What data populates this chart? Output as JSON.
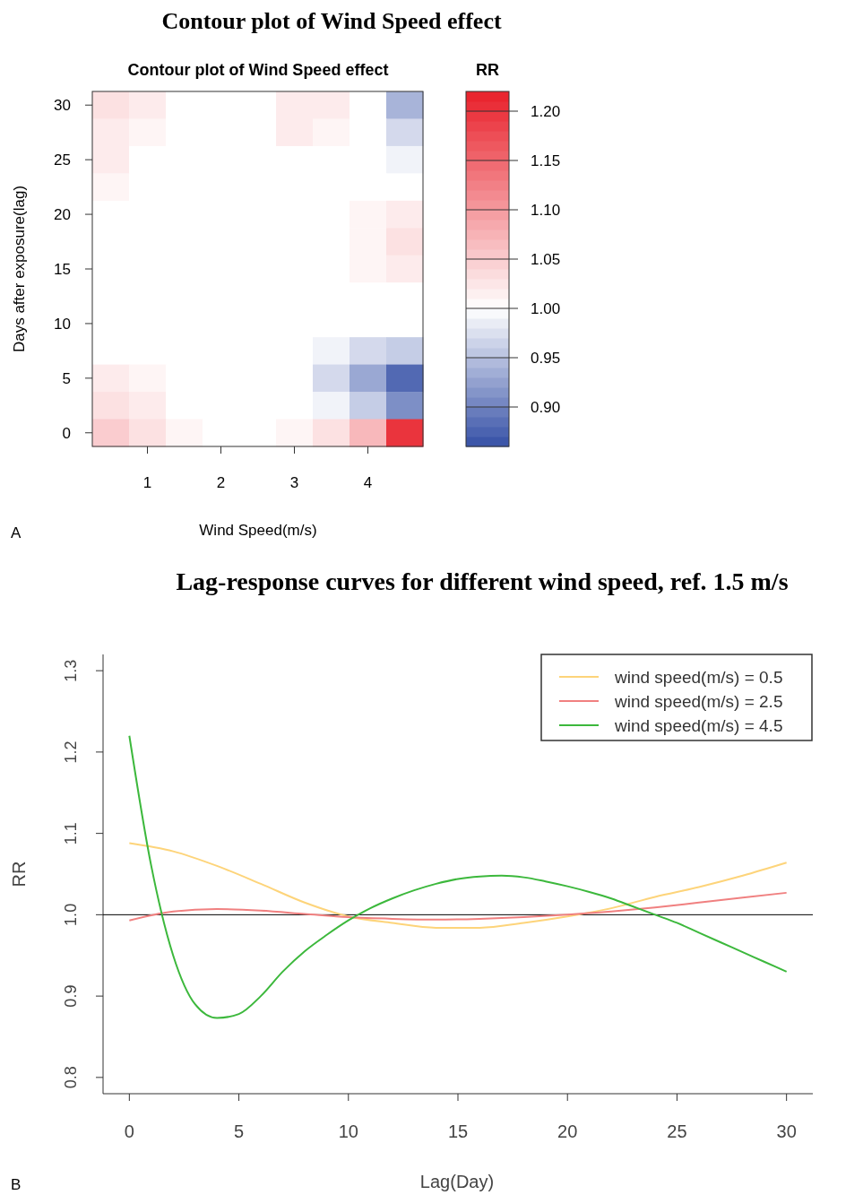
{
  "chart_data": [
    {
      "type": "heatmap",
      "title": "Contour plot of Wind Speed effect",
      "subtitle": "Contour plot of Wind Speed effect",
      "xlabel": "Wind Speed(m/s)",
      "ylabel": "Days after exposure(lag)",
      "clabel": "RR",
      "annotations": [
        "A"
      ],
      "categories": [
        null,
        "1",
        null,
        "2",
        null,
        "3",
        null,
        "4",
        null
      ],
      "y_categories": [
        "30",
        null,
        "25",
        null,
        "20",
        null,
        "15",
        null,
        "10",
        null,
        "5",
        null,
        "0"
      ],
      "clim": [
        0.86,
        1.22
      ],
      "cticks": [
        {
          "value": 0.9,
          "label": "0.90"
        },
        {
          "value": 0.95,
          "label": "0.95"
        },
        {
          "value": 1.0,
          "label": "1.00"
        },
        {
          "value": 1.05,
          "label": "1.05"
        },
        {
          "value": 1.1,
          "label": "1.10"
        },
        {
          "value": 1.15,
          "label": "1.15"
        },
        {
          "value": 1.2,
          "label": "1.20"
        }
      ],
      "cells": [
        [
          1.03,
          1.02,
          1.0,
          1.0,
          1.0,
          1.02,
          1.02,
          1.0,
          0.94
        ],
        [
          1.02,
          1.01,
          1.0,
          1.0,
          1.0,
          1.02,
          1.01,
          1.0,
          0.97
        ],
        [
          1.02,
          1.0,
          1.0,
          1.0,
          1.0,
          1.0,
          1.0,
          1.0,
          0.99
        ],
        [
          1.01,
          1.0,
          1.0,
          1.0,
          1.0,
          1.0,
          1.0,
          1.0,
          1.0
        ],
        [
          1.0,
          1.0,
          1.0,
          1.0,
          1.0,
          1.0,
          1.0,
          1.01,
          1.02
        ],
        [
          1.0,
          1.0,
          1.0,
          1.0,
          1.0,
          1.0,
          1.0,
          1.01,
          1.03
        ],
        [
          1.0,
          1.0,
          1.0,
          1.0,
          1.0,
          1.0,
          1.0,
          1.01,
          1.02
        ],
        [
          1.0,
          1.0,
          1.0,
          1.0,
          1.0,
          1.0,
          1.0,
          1.0,
          1.0
        ],
        [
          1.0,
          1.0,
          1.0,
          1.0,
          1.0,
          1.0,
          1.0,
          1.0,
          1.0
        ],
        [
          1.0,
          1.0,
          1.0,
          1.0,
          1.0,
          1.0,
          0.99,
          0.97,
          0.96
        ],
        [
          1.02,
          1.01,
          1.0,
          1.0,
          1.0,
          1.0,
          0.97,
          0.93,
          0.88
        ],
        [
          1.03,
          1.02,
          1.0,
          1.0,
          1.0,
          1.0,
          0.99,
          0.96,
          0.91
        ],
        [
          1.05,
          1.03,
          1.01,
          1.0,
          1.0,
          1.01,
          1.03,
          1.07,
          1.2
        ]
      ]
    },
    {
      "type": "line",
      "title": "Lag-response curves for different wind speed, ref. 1.5 m/s",
      "xlabel": "Lag(Day)",
      "ylabel": "RR",
      "annotations": [
        "B"
      ],
      "legend": "top right",
      "marker": "none",
      "xlim": [
        -1.2,
        31.2
      ],
      "xticks": [
        0,
        5,
        10,
        15,
        20,
        25,
        30
      ],
      "ylim": [
        0.78,
        1.32
      ],
      "yticks": [
        0.8,
        0.9,
        {
          "value": 1.0,
          "label": "1.0"
        },
        1.1,
        1.2,
        1.3
      ],
      "ref_lines": [
        {
          "axis": "y",
          "value": 1.0,
          "color": "#000000"
        }
      ],
      "series": [
        {
          "name": "wind speed(m/s) = 0.5",
          "color": "#fdd47a",
          "x": [
            0,
            2,
            4,
            6,
            8,
            10,
            12,
            14,
            16,
            18,
            20,
            22,
            24,
            26,
            28,
            30
          ],
          "values": [
            1.088,
            1.078,
            1.06,
            1.038,
            1.015,
            0.998,
            0.99,
            0.984,
            0.984,
            0.99,
            0.998,
            1.008,
            1.022,
            1.034,
            1.048,
            1.064
          ]
        },
        {
          "name": "wind speed(m/s) = 2.5",
          "color": "#f08080",
          "x": [
            0,
            2,
            4,
            6,
            8,
            10,
            12,
            14,
            16,
            18,
            20,
            22,
            24,
            26,
            28,
            30
          ],
          "values": [
            0.993,
            1.004,
            1.007,
            1.005,
            1.001,
            0.997,
            0.995,
            0.994,
            0.995,
            0.997,
            1.0,
            1.004,
            1.009,
            1.015,
            1.021,
            1.027
          ]
        },
        {
          "name": "wind speed(m/s) = 4.5",
          "color": "#3cb83c",
          "x": [
            0,
            1,
            2,
            3,
            4,
            5,
            6,
            7,
            8,
            9,
            10,
            11,
            12,
            13,
            14,
            15,
            16,
            17,
            18,
            19,
            20,
            21,
            22,
            23,
            24,
            25,
            26,
            27,
            28,
            29,
            30
          ],
          "values": [
            1.22,
            1.06,
            0.95,
            0.89,
            0.873,
            0.878,
            0.9,
            0.93,
            0.955,
            0.975,
            0.993,
            1.008,
            1.02,
            1.03,
            1.038,
            1.044,
            1.047,
            1.048,
            1.046,
            1.041,
            1.035,
            1.028,
            1.02,
            1.01,
            1.0,
            0.99,
            0.978,
            0.966,
            0.954,
            0.942,
            0.93
          ]
        }
      ]
    }
  ]
}
